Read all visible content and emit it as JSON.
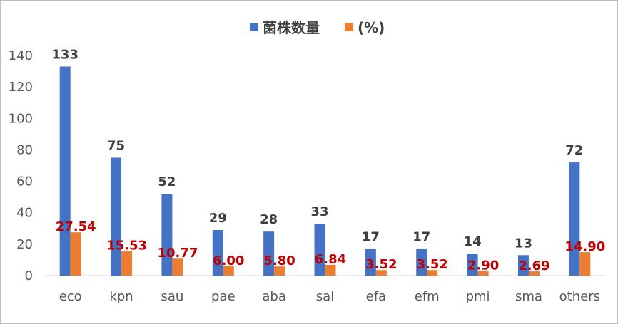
{
  "chart_data": {
    "type": "bar",
    "categories": [
      "eco",
      "kpn",
      "sau",
      "pae",
      "aba",
      "sal",
      "efa",
      "efm",
      "pmi",
      "sma",
      "others"
    ],
    "series": [
      {
        "name": "菌株数量",
        "color": "#4472c4",
        "values": [
          133,
          75,
          52,
          29,
          28,
          33,
          17,
          17,
          14,
          13,
          72
        ]
      },
      {
        "name": "(%)",
        "color": "#ed7d31",
        "values": [
          27.54,
          15.53,
          10.77,
          6.0,
          5.8,
          6.84,
          3.52,
          3.52,
          2.9,
          2.69,
          14.9
        ]
      }
    ],
    "count_labels": [
      "133",
      "75",
      "52",
      "29",
      "28",
      "33",
      "17",
      "17",
      "14",
      "13",
      "72"
    ],
    "pct_labels": [
      "27.54",
      "15.53",
      "10.77",
      "6.00",
      "5.80",
      "6.84",
      "3.52",
      "3.52",
      "2.90",
      "2.69",
      "14.90"
    ],
    "pct_label_color": "#c00000",
    "ylim": [
      0,
      140
    ],
    "yticks": [
      "0",
      "20",
      "40",
      "60",
      "80",
      "100",
      "120",
      "140"
    ],
    "legend_position": "top-center",
    "grid": false
  }
}
